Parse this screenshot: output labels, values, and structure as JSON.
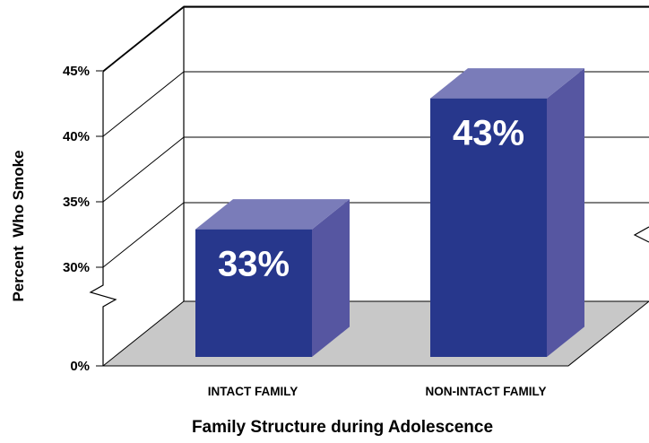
{
  "chart_data": {
    "type": "bar",
    "categories": [
      "INTACT FAMILY",
      "NON-INTACT FAMILY"
    ],
    "values": [
      33,
      43
    ],
    "value_labels": [
      "33%",
      "43%"
    ],
    "ylabel": "Percent  Who Smoke",
    "xlabel": "Family Structure during Adolescence",
    "y_ticks": [
      {
        "value": 0,
        "label": "0%"
      },
      {
        "value": 30,
        "label": "30%"
      },
      {
        "value": 35,
        "label": "35%"
      },
      {
        "value": 40,
        "label": "40%"
      },
      {
        "value": 45,
        "label": "45%"
      }
    ],
    "ylim": [
      0,
      45
    ],
    "axis_break": true,
    "grid": true,
    "colors": {
      "bar_front": "#27378c",
      "bar_top": "#7a7cb9",
      "bar_side": "#5656a1",
      "floor": "#c8c8c8"
    }
  }
}
